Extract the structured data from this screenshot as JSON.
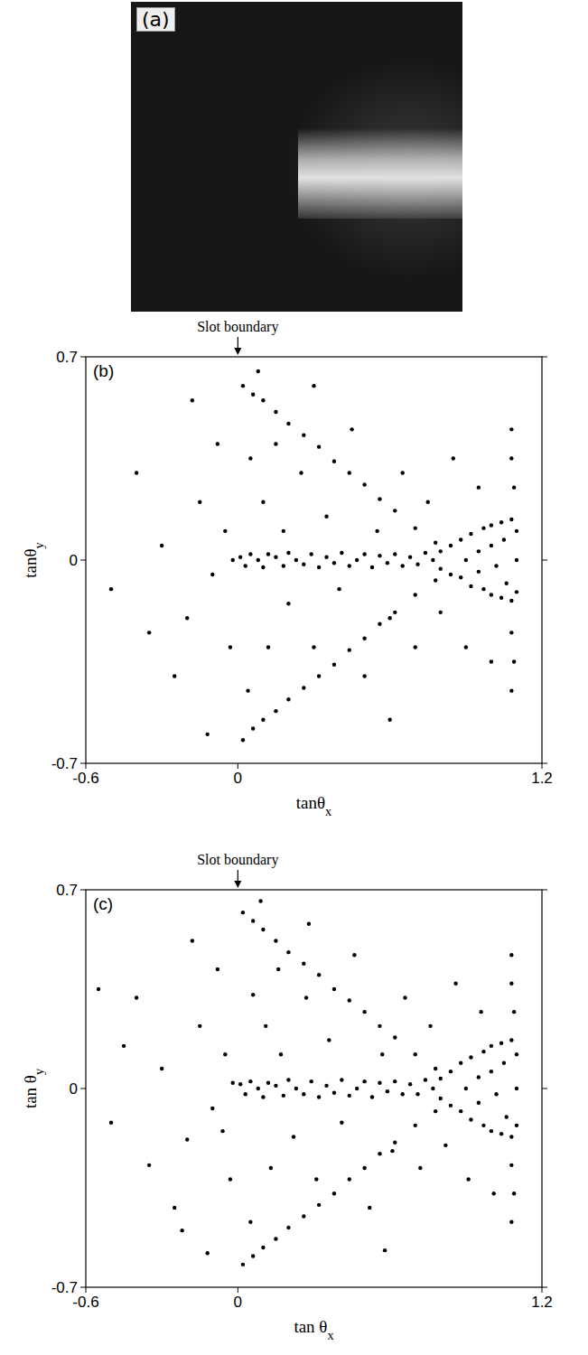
{
  "image_panel": {
    "label": "(a)"
  },
  "chart_data": [
    {
      "type": "scatter",
      "title": "(b)",
      "x_label": "tanθx",
      "y_label": "tanθy",
      "color": "#000000",
      "marker": "dot",
      "annotations": [
        {
          "text": "Slot boundary",
          "x": 0
        }
      ],
      "xlim": [
        -0.6,
        1.2
      ],
      "ylim": [
        -0.7,
        0.7
      ],
      "xticks": [
        -0.6,
        0,
        1.2
      ],
      "yticks": [
        -0.7,
        0,
        0.7
      ],
      "grid": false,
      "x": [
        0.01,
        0.03,
        0.05,
        0.08,
        0.1,
        0.12,
        0.15,
        0.18,
        0.2,
        0.23,
        0.26,
        0.29,
        0.32,
        0.35,
        0.38,
        0.41,
        0.44,
        0.47,
        0.5,
        0.53,
        0.56,
        0.59,
        0.62,
        0.65,
        0.68,
        0.71,
        0.74,
        0.77,
        0.8,
        0.8,
        0.84,
        0.84,
        0.88,
        0.88,
        0.9,
        0.92,
        0.92,
        0.95,
        0.95,
        0.97,
        0.97,
        1.0,
        1.0,
        1.0,
        1.02,
        1.04,
        1.04,
        1.05,
        1.06,
        1.08,
        1.08,
        1.1,
        1.1,
        1.1,
        0.02,
        0.06,
        0.1,
        0.15,
        0.2,
        0.26,
        0.32,
        0.38,
        0.44,
        0.5,
        0.56,
        0.62,
        0.7,
        0.78,
        0.02,
        0.06,
        0.1,
        0.15,
        0.2,
        0.26,
        0.32,
        0.38,
        0.44,
        0.5,
        0.56,
        0.62,
        0.7,
        0.78,
        0.05,
        0.1,
        0.12,
        0.18,
        0.2,
        0.25,
        0.3,
        0.35,
        0.4,
        0.45,
        0.5,
        0.55,
        0.6,
        0.65,
        0.7,
        0.75,
        0.8,
        0.85,
        0.9,
        0.95,
        1.0,
        0.08,
        0.3,
        0.6,
        0.04,
        0.15,
        1.08,
        1.08,
        1.09,
        1.08,
        1.09,
        1.08,
        -0.05,
        -0.1,
        -0.15,
        -0.2,
        -0.08,
        -0.3,
        -0.25,
        -0.4,
        -0.12,
        -0.5,
        -0.03,
        -0.18,
        -0.35,
        -0.02
      ],
      "values": [
        0.01,
        -0.02,
        0.02,
        0.0,
        -0.025,
        0.02,
        0.01,
        -0.02,
        0.025,
        0.0,
        -0.015,
        0.02,
        -0.025,
        0.01,
        -0.01,
        0.025,
        -0.02,
        0.0,
        0.02,
        -0.025,
        0.015,
        -0.01,
        0.02,
        -0.02,
        0.01,
        -0.015,
        0.025,
        0.0,
        0.03,
        -0.03,
        0.05,
        -0.05,
        0.07,
        -0.06,
        0.0,
        0.09,
        -0.09,
        0.03,
        -0.04,
        0.11,
        -0.1,
        0.12,
        -0.12,
        0.05,
        -0.02,
        0.13,
        -0.13,
        0.07,
        -0.08,
        0.14,
        -0.14,
        0.1,
        -0.11,
        0.0,
        0.6,
        0.57,
        0.55,
        0.51,
        0.47,
        0.43,
        0.39,
        0.34,
        0.3,
        0.26,
        0.21,
        0.17,
        0.11,
        0.06,
        -0.62,
        -0.58,
        -0.55,
        -0.52,
        -0.48,
        -0.44,
        -0.4,
        -0.36,
        -0.31,
        -0.27,
        -0.22,
        -0.18,
        -0.12,
        -0.07,
        0.35,
        0.2,
        -0.3,
        0.1,
        -0.15,
        0.3,
        -0.3,
        0.15,
        -0.1,
        0.45,
        -0.4,
        0.1,
        -0.2,
        0.3,
        -0.3,
        0.2,
        -0.18,
        0.35,
        -0.3,
        0.25,
        -0.35,
        0.65,
        0.6,
        -0.55,
        -0.45,
        0.4,
        0.45,
        0.35,
        0.25,
        -0.25,
        -0.35,
        -0.45,
        0.1,
        -0.05,
        0.2,
        -0.2,
        0.4,
        0.05,
        -0.4,
        0.3,
        -0.6,
        -0.1,
        -0.3,
        0.55,
        -0.25,
        0.0
      ]
    },
    {
      "type": "scatter",
      "title": "(c)",
      "x_label": "tan θx",
      "y_label": "tan θy",
      "color": "#000000",
      "marker": "dot",
      "annotations": [
        {
          "text": "Slot boundary",
          "x": 0
        }
      ],
      "xlim": [
        -0.6,
        1.2
      ],
      "ylim": [
        -0.7,
        0.7
      ],
      "xticks": [
        -0.6,
        0,
        1.2
      ],
      "yticks": [
        -0.7,
        0,
        0.7
      ],
      "grid": false,
      "x": [
        0.01,
        0.03,
        0.05,
        0.08,
        0.1,
        0.12,
        0.15,
        0.18,
        0.2,
        0.23,
        0.26,
        0.29,
        0.32,
        0.35,
        0.38,
        0.41,
        0.44,
        0.47,
        0.5,
        0.53,
        0.56,
        0.59,
        0.62,
        0.65,
        0.68,
        0.71,
        0.74,
        0.77,
        0.8,
        0.8,
        0.84,
        0.84,
        0.88,
        0.88,
        0.9,
        0.92,
        0.92,
        0.95,
        0.95,
        0.97,
        0.97,
        1.0,
        1.0,
        1.0,
        1.02,
        1.04,
        1.04,
        1.05,
        1.06,
        1.08,
        1.08,
        1.1,
        1.1,
        1.1,
        0.02,
        0.06,
        0.1,
        0.15,
        0.2,
        0.26,
        0.32,
        0.38,
        0.44,
        0.5,
        0.56,
        0.62,
        0.7,
        0.78,
        0.02,
        0.06,
        0.1,
        0.15,
        0.2,
        0.26,
        0.32,
        0.38,
        0.44,
        0.5,
        0.56,
        0.62,
        0.7,
        0.78,
        0.06,
        0.11,
        0.13,
        0.17,
        0.22,
        0.27,
        0.31,
        0.36,
        0.41,
        0.46,
        0.52,
        0.57,
        0.61,
        0.66,
        0.72,
        0.76,
        0.82,
        0.86,
        0.91,
        0.96,
        1.01,
        0.09,
        0.28,
        0.58,
        0.05,
        0.16,
        1.08,
        1.08,
        1.09,
        1.08,
        1.09,
        1.08,
        -0.05,
        -0.1,
        -0.15,
        -0.2,
        -0.08,
        -0.3,
        -0.25,
        -0.4,
        -0.12,
        -0.5,
        -0.03,
        -0.18,
        -0.35,
        -0.02,
        -0.45,
        -0.22,
        -0.06,
        -0.55
      ],
      "values": [
        0.015,
        -0.02,
        0.025,
        0.0,
        -0.03,
        0.02,
        0.01,
        -0.025,
        0.03,
        0.0,
        -0.02,
        0.025,
        -0.03,
        0.01,
        -0.015,
        0.03,
        -0.025,
        0.0,
        0.025,
        -0.03,
        0.02,
        -0.01,
        0.025,
        -0.02,
        0.015,
        -0.02,
        0.03,
        0.0,
        0.035,
        -0.035,
        0.06,
        -0.06,
        0.09,
        -0.08,
        0.0,
        0.11,
        -0.11,
        0.04,
        -0.05,
        0.13,
        -0.13,
        0.15,
        -0.15,
        0.06,
        -0.02,
        0.16,
        -0.16,
        0.09,
        -0.1,
        0.17,
        -0.17,
        0.12,
        -0.13,
        0.0,
        0.62,
        0.59,
        0.56,
        0.52,
        0.48,
        0.44,
        0.4,
        0.35,
        0.31,
        0.27,
        0.22,
        0.18,
        0.12,
        0.07,
        -0.62,
        -0.59,
        -0.56,
        -0.53,
        -0.49,
        -0.45,
        -0.41,
        -0.37,
        -0.32,
        -0.28,
        -0.23,
        -0.19,
        -0.13,
        -0.08,
        0.33,
        0.22,
        -0.28,
        0.12,
        -0.17,
        0.32,
        -0.32,
        0.17,
        -0.12,
        0.47,
        -0.42,
        0.12,
        -0.22,
        0.32,
        -0.28,
        0.22,
        -0.2,
        0.37,
        -0.32,
        0.27,
        -0.37,
        0.66,
        0.58,
        -0.57,
        -0.47,
        0.42,
        0.47,
        0.37,
        0.27,
        -0.27,
        -0.37,
        -0.47,
        0.12,
        -0.07,
        0.22,
        -0.18,
        0.42,
        0.07,
        -0.42,
        0.32,
        -0.58,
        -0.12,
        -0.32,
        0.52,
        -0.27,
        0.02,
        0.15,
        -0.5,
        -0.15,
        0.35
      ]
    }
  ]
}
